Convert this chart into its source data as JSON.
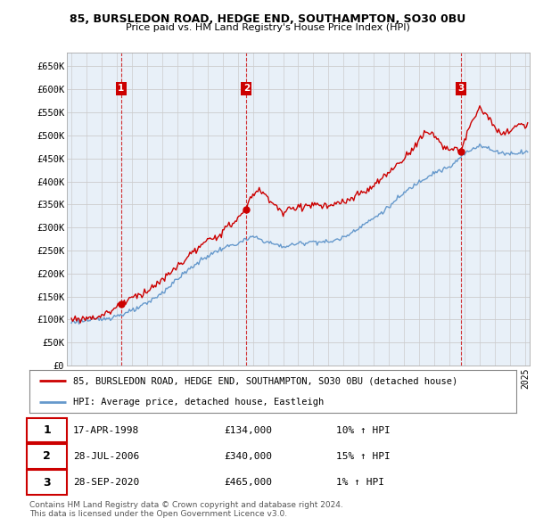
{
  "title1": "85, BURSLEDON ROAD, HEDGE END, SOUTHAMPTON, SO30 0BU",
  "title2": "Price paid vs. HM Land Registry's House Price Index (HPI)",
  "ylabel_ticks": [
    "£0",
    "£50K",
    "£100K",
    "£150K",
    "£200K",
    "£250K",
    "£300K",
    "£350K",
    "£400K",
    "£450K",
    "£500K",
    "£550K",
    "£600K",
    "£650K"
  ],
  "ytick_values": [
    0,
    50000,
    100000,
    150000,
    200000,
    250000,
    300000,
    350000,
    400000,
    450000,
    500000,
    550000,
    600000,
    650000
  ],
  "xmin": 1994.7,
  "xmax": 2025.3,
  "ymin": 0,
  "ymax": 680000,
  "sale_color": "#cc0000",
  "hpi_color": "#6699cc",
  "chart_bg": "#e8f0f8",
  "purchases": [
    {
      "num": 1,
      "date_str": "17-APR-1998",
      "date_x": 1998.29,
      "price": 134000,
      "label": "10% ↑ HPI"
    },
    {
      "num": 2,
      "date_str": "28-JUL-2006",
      "date_x": 2006.57,
      "price": 340000,
      "label": "15% ↑ HPI"
    },
    {
      "num": 3,
      "date_str": "28-SEP-2020",
      "date_x": 2020.74,
      "price": 465000,
      "label": "1% ↑ HPI"
    }
  ],
  "legend_line1": "85, BURSLEDON ROAD, HEDGE END, SOUTHAMPTON, SO30 0BU (detached house)",
  "legend_line2": "HPI: Average price, detached house, Eastleigh",
  "footer1": "Contains HM Land Registry data © Crown copyright and database right 2024.",
  "footer2": "This data is licensed under the Open Government Licence v3.0.",
  "background_color": "#ffffff",
  "grid_color": "#cccccc",
  "hpi_anchors_x": [
    1995.0,
    1996.0,
    1997.0,
    1998.0,
    1999.0,
    2000.0,
    2001.0,
    2002.0,
    2003.0,
    2004.0,
    2005.0,
    2006.0,
    2007.0,
    2008.0,
    2009.0,
    2010.0,
    2011.0,
    2012.0,
    2013.0,
    2014.0,
    2015.0,
    2016.0,
    2017.0,
    2018.0,
    2019.0,
    2020.0,
    2021.0,
    2022.0,
    2023.0,
    2024.0,
    2025.0
  ],
  "hpi_anchors_y": [
    95000,
    98000,
    101000,
    108000,
    118000,
    135000,
    158000,
    188000,
    215000,
    238000,
    255000,
    265000,
    280000,
    268000,
    258000,
    265000,
    270000,
    268000,
    278000,
    300000,
    320000,
    345000,
    375000,
    400000,
    420000,
    430000,
    460000,
    480000,
    465000,
    460000,
    465000
  ],
  "prop_anchors_x": [
    1995.0,
    1996.0,
    1997.0,
    1998.0,
    1998.29,
    1999.0,
    2000.0,
    2001.0,
    2002.0,
    2003.0,
    2004.0,
    2005.0,
    2006.0,
    2006.57,
    2007.0,
    2007.5,
    2008.0,
    2008.5,
    2009.0,
    2009.5,
    2010.0,
    2011.0,
    2012.0,
    2013.0,
    2014.0,
    2015.0,
    2016.0,
    2017.0,
    2018.0,
    2018.5,
    2019.0,
    2019.5,
    2020.0,
    2020.74,
    2021.0,
    2021.5,
    2022.0,
    2022.5,
    2023.0,
    2023.5,
    2024.0,
    2024.5,
    2025.0
  ],
  "prop_anchors_y": [
    100000,
    103000,
    108000,
    127000,
    134000,
    148000,
    162000,
    185000,
    215000,
    245000,
    270000,
    290000,
    320000,
    340000,
    375000,
    380000,
    365000,
    348000,
    330000,
    340000,
    345000,
    350000,
    345000,
    355000,
    370000,
    390000,
    420000,
    450000,
    490000,
    510000,
    500000,
    480000,
    470000,
    465000,
    490000,
    530000,
    560000,
    545000,
    515000,
    500000,
    510000,
    525000,
    520000
  ]
}
